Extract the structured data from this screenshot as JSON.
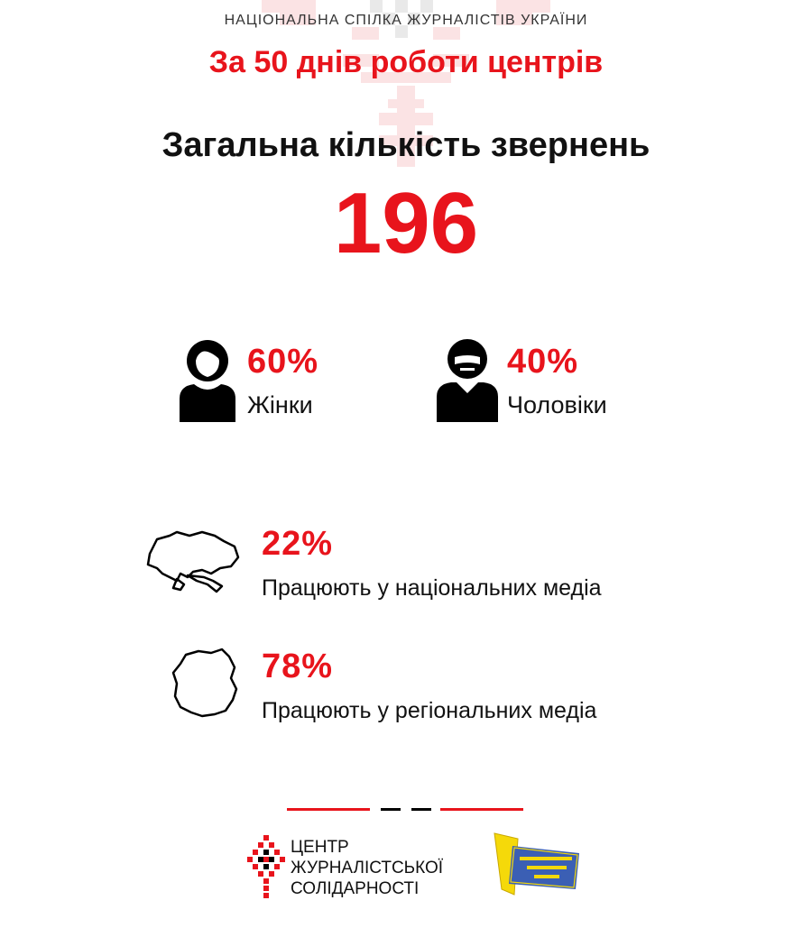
{
  "header": {
    "org": "НАЦІОНАЛЬНА СПІЛКА ЖУРНАЛІСТІВ УКРАЇНИ",
    "subtitle": "За 50 днів роботи центрів"
  },
  "summary": {
    "heading": "Загальна кількість звернень",
    "total": "196"
  },
  "gender": [
    {
      "percent": "60%",
      "label": "Жінки",
      "icon": "woman-icon"
    },
    {
      "percent": "40%",
      "label": "Чоловіки",
      "icon": "man-icon"
    }
  ],
  "media": [
    {
      "percent": "22%",
      "label": "Працюють у національних медіа",
      "icon": "ukraine-map-icon"
    },
    {
      "percent": "78%",
      "label": "Працюють у регіональних медіа",
      "icon": "region-map-icon"
    }
  ],
  "footer": {
    "center_name": [
      "ЦЕНТР",
      "ЖУРНАЛІСТСЬКОЇ",
      "СОЛІДАРНОСТІ"
    ],
    "nuju_logo": "НАЦІОНАЛЬНА СПІЛКА ЖУРНАЛІСТІВ УКРАЇНИ"
  },
  "colors": {
    "accent": "#e8141c",
    "text": "#111111",
    "logo_yellow": "#f5d90a",
    "logo_blue": "#3b5fb4"
  }
}
